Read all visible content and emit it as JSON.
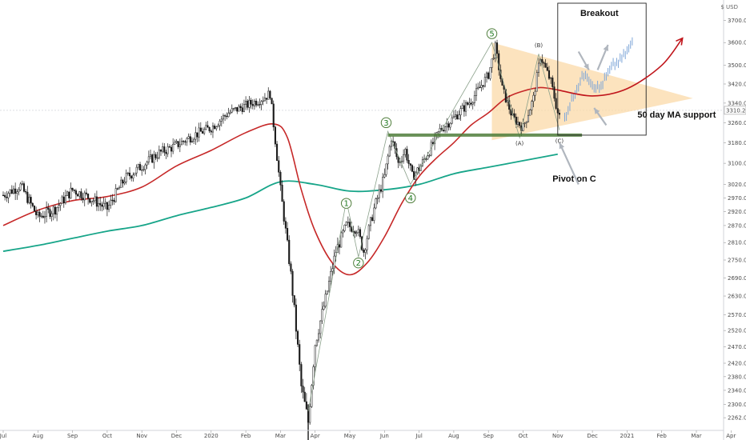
{
  "chart_data": {
    "type": "candlestick",
    "currency_label": "$ USD",
    "last_price": 3310.24,
    "ylim": [
      2240,
      3780
    ],
    "y_ticks": [
      2262.0,
      2300.0,
      2340.0,
      2380.0,
      2420.0,
      2470.0,
      2520.0,
      2570.0,
      2630.0,
      2690.0,
      2750.0,
      2810.0,
      2870.0,
      2920.0,
      2970.0,
      3020.0,
      3100.0,
      3180.0,
      3260.0,
      3340.0,
      3420.0,
      3500.0,
      3600.0,
      3700.0
    ],
    "x_ticks": [
      {
        "label": "Jul",
        "x": 0
      },
      {
        "label": "Aug",
        "x": 1
      },
      {
        "label": "Sep",
        "x": 2
      },
      {
        "label": "Oct",
        "x": 3
      },
      {
        "label": "Nov",
        "x": 4
      },
      {
        "label": "Dec",
        "x": 5
      },
      {
        "label": "2020",
        "x": 6
      },
      {
        "label": "Feb",
        "x": 7
      },
      {
        "label": "Mar",
        "x": 8
      },
      {
        "label": "Apr",
        "x": 9
      },
      {
        "label": "May",
        "x": 10
      },
      {
        "label": "Jun",
        "x": 11
      },
      {
        "label": "Jul",
        "x": 12
      },
      {
        "label": "Aug",
        "x": 13
      },
      {
        "label": "Sep",
        "x": 14
      },
      {
        "label": "Oct",
        "x": 15
      },
      {
        "label": "Nov",
        "x": 16
      },
      {
        "label": "Dec",
        "x": 17
      },
      {
        "label": "2021",
        "x": 18
      },
      {
        "label": "Feb",
        "x": 19
      },
      {
        "label": "Mar",
        "x": 20
      },
      {
        "label": "Apr",
        "x": 21
      }
    ],
    "price_path": [
      [
        0.0,
        2980
      ],
      [
        0.5,
        3015
      ],
      [
        1.0,
        2900
      ],
      [
        1.5,
        2930
      ],
      [
        2.0,
        3000
      ],
      [
        2.5,
        2970
      ],
      [
        3.0,
        2930
      ],
      [
        3.5,
        3040
      ],
      [
        4.0,
        3090
      ],
      [
        4.5,
        3140
      ],
      [
        5.0,
        3170
      ],
      [
        5.5,
        3210
      ],
      [
        6.0,
        3240
      ],
      [
        6.5,
        3300
      ],
      [
        7.0,
        3330
      ],
      [
        7.5,
        3360
      ],
      [
        7.7,
        3380
      ],
      [
        8.0,
        3000
      ],
      [
        8.3,
        2700
      ],
      [
        8.6,
        2350
      ],
      [
        8.8,
        2250
      ],
      [
        9.0,
        2480
      ],
      [
        9.3,
        2620
      ],
      [
        9.6,
        2780
      ],
      [
        9.9,
        2870
      ],
      [
        10.2,
        2860
      ],
      [
        10.4,
        2780
      ],
      [
        10.7,
        2930
      ],
      [
        11.0,
        3050
      ],
      [
        11.2,
        3200
      ],
      [
        11.4,
        3100
      ],
      [
        11.6,
        3150
      ],
      [
        11.8,
        3050
      ],
      [
        12.0,
        3080
      ],
      [
        12.3,
        3150
      ],
      [
        12.6,
        3230
      ],
      [
        13.0,
        3280
      ],
      [
        13.5,
        3350
      ],
      [
        14.0,
        3460
      ],
      [
        14.2,
        3580
      ],
      [
        14.4,
        3400
      ],
      [
        14.7,
        3280
      ],
      [
        15.0,
        3240
      ],
      [
        15.3,
        3360
      ],
      [
        15.5,
        3540
      ],
      [
        15.8,
        3430
      ],
      [
        16.0,
        3300
      ],
      [
        16.1,
        3260
      ]
    ],
    "projection_path": [
      [
        16.2,
        3280
      ],
      [
        16.5,
        3390
      ],
      [
        16.8,
        3470
      ],
      [
        17.0,
        3420
      ],
      [
        17.2,
        3400
      ],
      [
        17.4,
        3450
      ],
      [
        17.6,
        3500
      ],
      [
        17.8,
        3520
      ],
      [
        18.0,
        3560
      ],
      [
        18.2,
        3610
      ]
    ],
    "ma50": [
      [
        0.0,
        2870
      ],
      [
        1.0,
        2925
      ],
      [
        2.0,
        2960
      ],
      [
        3.0,
        2975
      ],
      [
        4.0,
        3010
      ],
      [
        5.0,
        3090
      ],
      [
        6.0,
        3150
      ],
      [
        7.0,
        3220
      ],
      [
        7.8,
        3255
      ],
      [
        8.2,
        3200
      ],
      [
        8.6,
        3000
      ],
      [
        9.0,
        2850
      ],
      [
        9.5,
        2740
      ],
      [
        10.0,
        2700
      ],
      [
        10.5,
        2740
      ],
      [
        11.0,
        2830
      ],
      [
        11.5,
        2950
      ],
      [
        12.0,
        3050
      ],
      [
        12.5,
        3120
      ],
      [
        13.0,
        3180
      ],
      [
        13.5,
        3250
      ],
      [
        14.0,
        3300
      ],
      [
        14.5,
        3360
      ],
      [
        15.0,
        3390
      ],
      [
        15.5,
        3405
      ],
      [
        16.0,
        3395
      ]
    ],
    "ma200": [
      [
        0.0,
        2780
      ],
      [
        1.0,
        2800
      ],
      [
        2.0,
        2825
      ],
      [
        3.0,
        2850
      ],
      [
        4.0,
        2870
      ],
      [
        5.0,
        2905
      ],
      [
        6.0,
        2935
      ],
      [
        7.0,
        2970
      ],
      [
        8.0,
        3030
      ],
      [
        9.0,
        3020
      ],
      [
        10.0,
        2995
      ],
      [
        11.0,
        3000
      ],
      [
        12.0,
        3020
      ],
      [
        13.0,
        3060
      ],
      [
        14.0,
        3085
      ],
      [
        15.0,
        3110
      ],
      [
        16.0,
        3135
      ]
    ],
    "future_ma_arrow": [
      [
        16.0,
        3395
      ],
      [
        17.0,
        3370
      ],
      [
        18.0,
        3400
      ],
      [
        19.0,
        3500
      ],
      [
        19.6,
        3620
      ]
    ],
    "support_line": {
      "x": [
        11.1,
        16.7
      ],
      "y": 3210
    },
    "wave_labels": [
      {
        "text": "1",
        "x": 9.9,
        "y": 2950
      },
      {
        "text": "2",
        "x": 10.25,
        "y": 2740
      },
      {
        "text": "3",
        "x": 11.05,
        "y": 3260
      },
      {
        "text": "4",
        "x": 11.75,
        "y": 2970
      },
      {
        "text": "5",
        "x": 14.1,
        "y": 3640
      }
    ],
    "subwave_labels": [
      {
        "text": "(A)",
        "x": 14.9,
        "y": 3170
      },
      {
        "text": "(B)",
        "x": 15.45,
        "y": 3580
      },
      {
        "text": "(C)",
        "x": 16.05,
        "y": 3180
      }
    ],
    "annotations": [
      {
        "text": "Breakout",
        "x": 16.65,
        "y": 3720
      },
      {
        "text": "50 day MA support",
        "x": 18.3,
        "y": 3280
      },
      {
        "text": "Pivot on C",
        "x": 15.85,
        "y": 3030
      }
    ],
    "triangle": [
      [
        14.1,
        3600
      ],
      [
        19.9,
        3360
      ],
      [
        14.1,
        3190
      ]
    ],
    "breakout_box": {
      "x": [
        16.0,
        18.55
      ],
      "y": [
        3210,
        3780
      ]
    },
    "colors": {
      "price": "#1a1a1a",
      "projection": "#7ea6d8",
      "ma50": "#c62828",
      "ma200": "#17a589",
      "support": "#4e7d3a",
      "triangle": "#fbd9a8",
      "arrow": "#b0b6be",
      "future_arrow": "#c0151b"
    }
  }
}
